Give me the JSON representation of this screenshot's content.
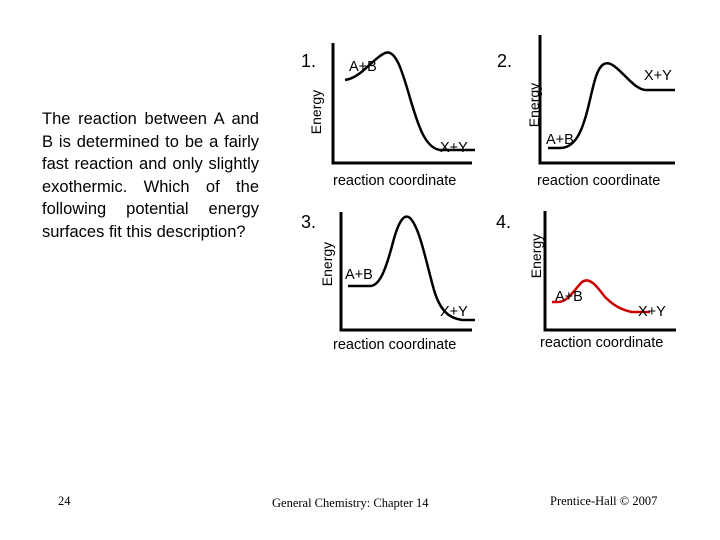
{
  "question": "The reaction between A and B is determined to be a fairly fast reaction and only slightly exothermic. Which of the following potential energy surfaces fit this description?",
  "diagrams": [
    {
      "number": "1.",
      "y_axis": "Energy",
      "x_axis": "reaction coordinate",
      "reactant": "A+B",
      "product": "X+Y"
    },
    {
      "number": "2.",
      "y_axis": "Energy",
      "x_axis": "reaction coordinate",
      "reactant": "A+B",
      "product": "X+Y"
    },
    {
      "number": "3.",
      "y_axis": "Energy",
      "x_axis": "reaction coordinate",
      "reactant": "A+B",
      "product": "X+Y"
    },
    {
      "number": "4.",
      "y_axis": "Energy",
      "x_axis": "reaction coordinate",
      "reactant": "A+B",
      "product": "X+Y"
    }
  ],
  "footer": {
    "page_number": "24",
    "chapter": "General Chemistry: Chapter 14",
    "copyright": "Prentice-Hall © 2007"
  },
  "colors": {
    "axis": "#000000",
    "curve_default": "#000000",
    "curve_highlight": "#cc0000"
  }
}
